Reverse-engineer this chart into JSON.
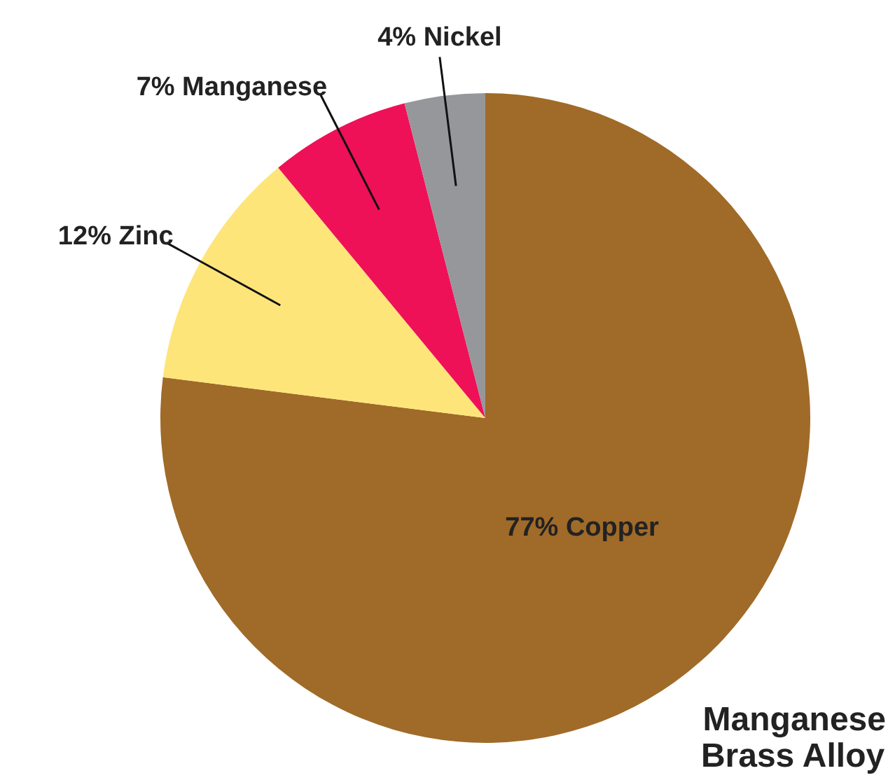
{
  "chart_data": {
    "type": "pie",
    "title": "Manganese\nBrass Alloy",
    "categories": [
      "77% Copper",
      "12% Zinc",
      "7% Manganese",
      "4% Nickel"
    ],
    "values": [
      77,
      12,
      7,
      4
    ],
    "colors": [
      "#a06a28",
      "#fee57a",
      "#ee1158",
      "#96979b"
    ]
  }
}
